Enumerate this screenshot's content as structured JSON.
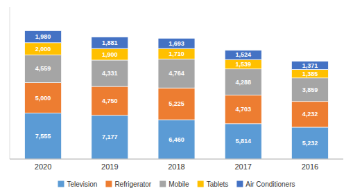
{
  "chart_data": {
    "type": "bar",
    "stacked": true,
    "data_labels": true,
    "legend": "bottom",
    "grid": false,
    "tick_labels": "x",
    "categories": [
      "2020",
      "2019",
      "2018",
      "2017",
      "2016"
    ],
    "ylim": [
      0,
      25000
    ],
    "series": [
      {
        "name": "Television",
        "color": "#5B9BD5",
        "values": [
          7555,
          7177,
          6460,
          5814,
          5232
        ],
        "value_labels": [
          "7,555",
          "7,177",
          "6,460",
          "5,814",
          "5,232"
        ]
      },
      {
        "name": "Refrigerator",
        "color": "#ED7D31",
        "values": [
          5000,
          4750,
          5225,
          4703,
          4232
        ],
        "value_labels": [
          "5,000",
          "4,750",
          "5,225",
          "4,703",
          "4,232"
        ]
      },
      {
        "name": "Mobile",
        "color": "#A5A5A5",
        "values": [
          4559,
          4331,
          4764,
          4288,
          3859
        ],
        "value_labels": [
          "4,559",
          "4,331",
          "4,764",
          "4,288",
          "3,859"
        ]
      },
      {
        "name": "Tablets",
        "color": "#FFC000",
        "values": [
          2000,
          1900,
          1710,
          1539,
          1385
        ],
        "value_labels": [
          "2,000",
          "1,900",
          "1,710",
          "1,539",
          "1,385"
        ]
      },
      {
        "name": "Air Conditioners",
        "color": "#4472C4",
        "values": [
          1980,
          1881,
          1693,
          1524,
          1371
        ],
        "value_labels": [
          "1,980",
          "1,881",
          "1,693",
          "1,524",
          "1,371"
        ]
      }
    ]
  }
}
